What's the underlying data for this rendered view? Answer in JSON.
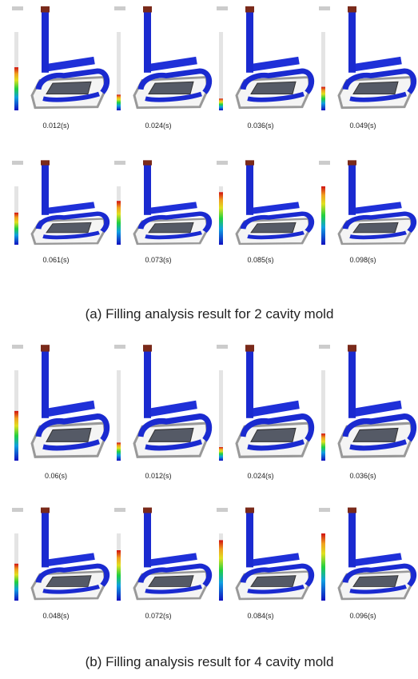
{
  "panels": [
    {
      "caption": "(a) Filling analysis result for 2 cavity mold",
      "frames": [
        "0.012(s)",
        "0.024(s)",
        "0.036(s)",
        "0.049(s)",
        "0.061(s)",
        "0.073(s)",
        "0.085(s)",
        "0.098(s)"
      ]
    },
    {
      "caption": "(b) Filling analysis result for 4 cavity mold",
      "frames": [
        "0.06(s)",
        "0.012(s)",
        "0.024(s)",
        "0.036(s)",
        "0.048(s)",
        "0.072(s)",
        "0.084(s)",
        "0.096(s)"
      ]
    }
  ]
}
